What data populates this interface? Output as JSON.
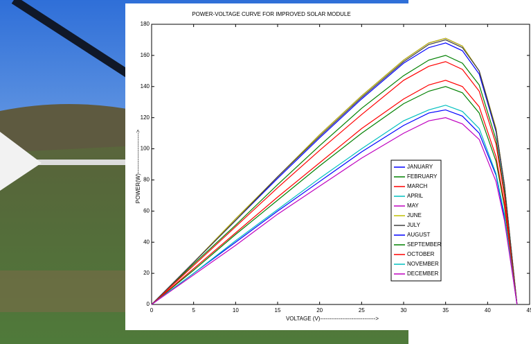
{
  "chart_data": {
    "type": "line",
    "title": "POWER-VOLTAGE CURVE FOR IMPROVED SOLAR MODULE",
    "x_label": "VOLTAGE (V)------------------------------>",
    "y_label": "POWER(W)---------------------->",
    "x": [
      0,
      5,
      10,
      15,
      20,
      25,
      30,
      33,
      35,
      37,
      39,
      41,
      42,
      43.5
    ],
    "series": [
      {
        "name": "JANUARY",
        "color": "#0000ff",
        "values": [
          0,
          27,
          54,
          81,
          107,
          132,
          155,
          165,
          168,
          163,
          148,
          111,
          76,
          0
        ]
      },
      {
        "name": "FEBRUARY",
        "color": "#008000",
        "values": [
          0,
          26,
          51,
          77,
          102,
          126,
          147,
          157,
          160,
          155,
          141,
          106,
          72,
          0
        ]
      },
      {
        "name": "MARCH",
        "color": "#ff0000",
        "values": [
          0,
          25,
          50,
          75,
          99,
          122,
          144,
          153,
          156,
          151,
          137,
          103,
          70,
          0
        ]
      },
      {
        "name": "APRIL",
        "color": "#00bfbf",
        "values": [
          0,
          27,
          55,
          82,
          109,
          134,
          157,
          168,
          171,
          166,
          150,
          113,
          77,
          0
        ]
      },
      {
        "name": "MAY",
        "color": "#bf00bf",
        "values": [
          0,
          27,
          55,
          82,
          109,
          134,
          157,
          168,
          171,
          166,
          150,
          113,
          77,
          0
        ]
      },
      {
        "name": "JUNE",
        "color": "#bfbf00",
        "values": [
          0,
          27,
          55,
          82,
          109,
          134,
          157,
          168,
          171,
          166,
          150,
          113,
          77,
          0
        ]
      },
      {
        "name": "JULY",
        "color": "#404040",
        "values": [
          0,
          27,
          54,
          82,
          108,
          133,
          156,
          167,
          170,
          165,
          150,
          112,
          77,
          0
        ]
      },
      {
        "name": "AUGUST",
        "color": "#0000ff",
        "values": [
          0,
          20,
          40,
          60,
          79,
          98,
          115,
          123,
          125,
          121,
          110,
          83,
          56,
          0
        ]
      },
      {
        "name": "SEPTEMBER",
        "color": "#008000",
        "values": [
          0,
          22,
          45,
          67,
          89,
          110,
          129,
          137,
          140,
          136,
          123,
          92,
          63,
          0
        ]
      },
      {
        "name": "OCTOBER",
        "color": "#ff0000",
        "values": [
          0,
          23,
          46,
          69,
          91,
          113,
          132,
          141,
          144,
          140,
          127,
          95,
          65,
          0
        ]
      },
      {
        "name": "NOVEMBER",
        "color": "#00bfbf",
        "values": [
          0,
          20,
          41,
          61,
          81,
          100,
          118,
          125,
          128,
          124,
          113,
          84,
          58,
          0
        ]
      },
      {
        "name": "DECEMBER",
        "color": "#bf00bf",
        "values": [
          0,
          19,
          38,
          58,
          76,
          94,
          110,
          118,
          120,
          116,
          106,
          79,
          54,
          0
        ]
      }
    ],
    "xlim": [
      0,
      45
    ],
    "xticks": [
      0,
      5,
      10,
      15,
      20,
      25,
      30,
      35,
      40,
      45
    ],
    "ylim": [
      0,
      180
    ],
    "yticks": [
      0,
      20,
      40,
      60,
      80,
      100,
      120,
      140,
      160,
      180
    ],
    "grid": false,
    "legend": "lower right"
  }
}
